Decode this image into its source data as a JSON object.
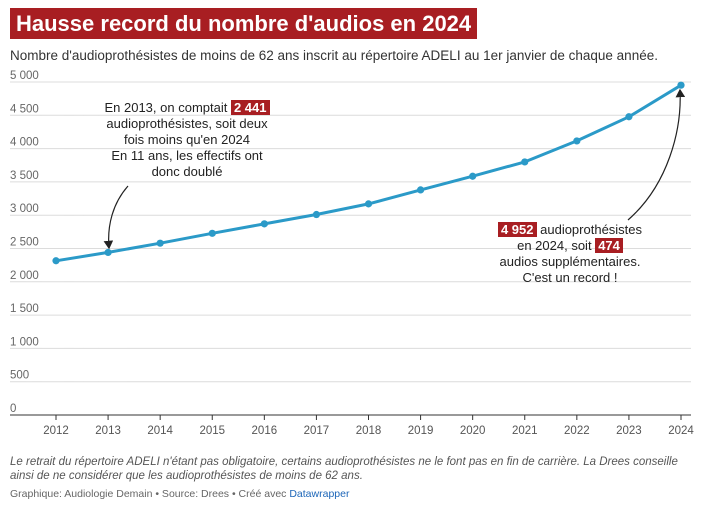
{
  "header": {
    "title": "Hausse record du nombre d'audios en 2024",
    "subtitle": "Nombre d'audioprothésistes de moins de 62 ans inscrit au répertoire ADELI au 1er janvier de chaque année."
  },
  "annotations": {
    "left": {
      "prefix": "En 2013, on comptait",
      "value": "2 441",
      "line2": "audioprothésistes, soit deux",
      "line3": "fois moins qu'en 2024",
      "line4": "En 11 ans, les effectifs ont",
      "line5": "donc doublé"
    },
    "right": {
      "value1": "4 952",
      "text1": "audioprothésistes",
      "text2": "en 2024, soit",
      "value2": "474",
      "text3": "audios supplémentaires.",
      "text4": "C'est un record !"
    }
  },
  "footer": {
    "note": "Le retrait du répertoire ADELI n'étant pas obligatoire, certains audioprothésistes ne le font pas en fin de carrière. La Drees conseille ainsi de ne considérer que les audioprothésistes de moins de 62 ans.",
    "credit_prefix": "Graphique: Audiologie Demain • Source: Drees • Créé avec",
    "credit_link": "Datawrapper"
  },
  "colors": {
    "accent": "#a81e22",
    "line": "#2b9ac8",
    "grid": "#dcdcdc"
  },
  "chart_data": {
    "type": "line",
    "x": [
      2012,
      2013,
      2014,
      2015,
      2016,
      2017,
      2018,
      2019,
      2020,
      2021,
      2022,
      2023,
      2024
    ],
    "categories": [
      "2012",
      "2013",
      "2014",
      "2015",
      "2016",
      "2017",
      "2018",
      "2019",
      "2020",
      "2021",
      "2022",
      "2023",
      "2024"
    ],
    "series": [
      {
        "name": "Audioprothésistes de moins de 62 ans",
        "values": [
          2316,
          2441,
          2580,
          2728,
          2870,
          3010,
          3170,
          3380,
          3585,
          3800,
          4115,
          4478,
          4952
        ]
      }
    ],
    "yticks": [
      0,
      500,
      1000,
      1500,
      2000,
      2500,
      3000,
      3500,
      4000,
      4500,
      5000
    ],
    "ytick_labels": [
      "0",
      "500",
      "1 000",
      "1 500",
      "2 000",
      "2 500",
      "3 000",
      "3 500",
      "4 000",
      "4 500",
      "5 000"
    ],
    "ylim": [
      0,
      5000
    ],
    "xlim": [
      2012,
      2024
    ],
    "grid": true,
    "title": "Hausse record du nombre d'audios en 2024",
    "xlabel": "",
    "ylabel": ""
  }
}
